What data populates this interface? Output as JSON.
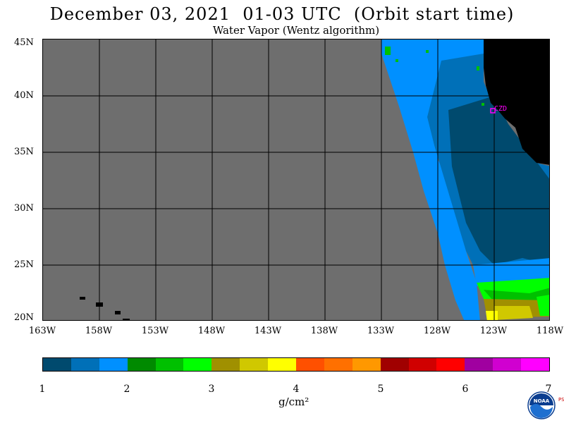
{
  "header": {
    "title": "December 03, 2021  01-03 UTC  (Orbit start time)",
    "subtitle": "Water Vapor (Wentz algorithm)"
  },
  "map": {
    "lat_labels": [
      "45N",
      "40N",
      "35N",
      "30N",
      "25N",
      "20N"
    ],
    "lon_labels": [
      "163W",
      "158W",
      "153W",
      "148W",
      "143W",
      "138W",
      "133W",
      "128W",
      "123W",
      "118W"
    ],
    "station_label": "CZD",
    "colors": {
      "no_data": "#6e6e6e",
      "land": "#000000",
      "grid": "#000000",
      "station": "#ff00ff"
    }
  },
  "colorbar": {
    "ticks": [
      "1",
      "2",
      "3",
      "4",
      "5",
      "6",
      "7"
    ],
    "units": "g/cm²",
    "colors": [
      "#004a6e",
      "#0070b8",
      "#0090ff",
      "#008a00",
      "#00c000",
      "#00ff00",
      "#a09000",
      "#d0c800",
      "#ffff00",
      "#ff5000",
      "#ff7000",
      "#ff9800",
      "#a00000",
      "#d00000",
      "#ff0000",
      "#a000a0",
      "#d000d0",
      "#ff00ff"
    ]
  },
  "logo": {
    "name": "NOAA",
    "psl_text": "PSL"
  }
}
